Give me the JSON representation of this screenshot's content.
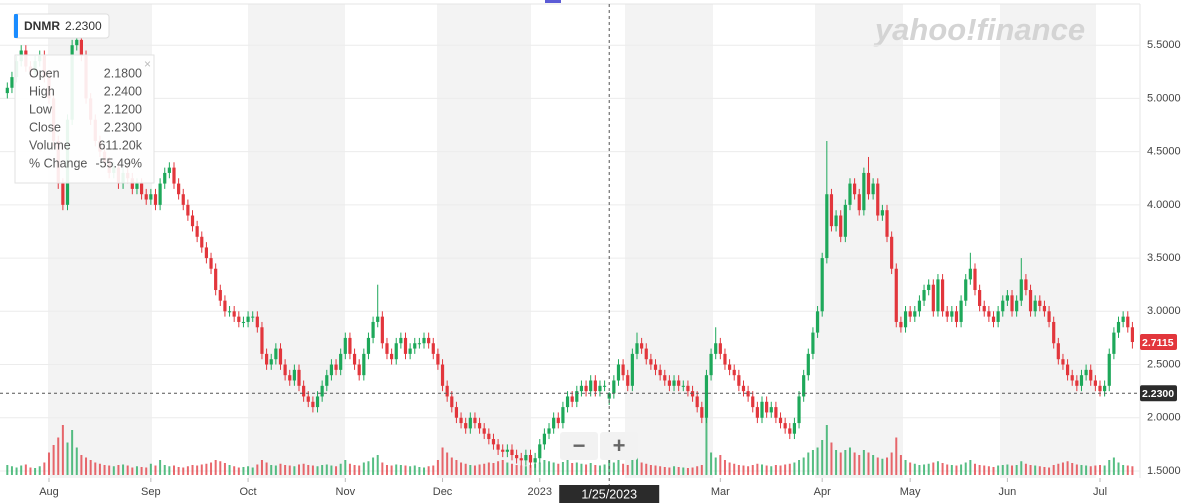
{
  "chart_data": {
    "type": "candlestick",
    "symbol": "DNMR",
    "price_label": "2.2300",
    "watermark": "yahoo!finance",
    "crosshair_date": "1/25/2023",
    "zoom_out": "−",
    "zoom_in": "+",
    "tooltip": [
      {
        "label": "Open",
        "value": "2.1800"
      },
      {
        "label": "High",
        "value": "2.2400"
      },
      {
        "label": "Low",
        "value": "2.1200"
      },
      {
        "label": "Close",
        "value": "2.2300"
      },
      {
        "label": "Volume",
        "value": "611.20k"
      },
      {
        "label": "% Change",
        "value": "-55.49%"
      }
    ],
    "up_color": "#1ea85a",
    "down_color": "#e2363c",
    "grid": true,
    "ylim": [
      1.434,
      5.887
    ],
    "yticks": [
      {
        "value": 1.5,
        "label": "1.5000"
      },
      {
        "value": 2,
        "label": "2.0000"
      },
      {
        "value": 2.5,
        "label": "2.5000"
      },
      {
        "value": 3,
        "label": "3.0000"
      },
      {
        "value": 3.5,
        "label": "3.5000"
      },
      {
        "value": 4,
        "label": "4.0000"
      },
      {
        "value": 4.5,
        "label": "4.5000"
      },
      {
        "value": 5,
        "label": "5.0000"
      },
      {
        "value": 5.5,
        "label": "5.5000"
      }
    ],
    "xticks": [
      {
        "value": 9,
        "label": "Aug"
      },
      {
        "value": 31,
        "label": "Sep"
      },
      {
        "value": 52,
        "label": "Oct"
      },
      {
        "value": 73,
        "label": "Nov"
      },
      {
        "value": 94,
        "label": "Dec"
      },
      {
        "value": 115,
        "label": "2023"
      },
      {
        "value": 154,
        "label": "Mar"
      },
      {
        "value": 176,
        "label": "Apr"
      },
      {
        "value": 195,
        "label": "May"
      },
      {
        "value": 216,
        "label": "Jun"
      },
      {
        "value": 236,
        "label": "Jul"
      }
    ],
    "open": [
      5.05,
      5.1,
      5.2,
      5.35,
      5.45,
      5.3,
      5.25,
      5.35,
      5.4,
      5.2,
      5.0,
      4.6,
      4.2,
      4.0,
      4.8,
      5.5,
      5.55,
      5.4,
      5.0,
      4.8,
      4.6,
      4.5,
      4.4,
      4.3,
      4.35,
      4.2,
      4.3,
      4.25,
      4.15,
      4.2,
      4.1,
      4.05,
      4.1,
      4.0,
      4.2,
      4.3,
      4.35,
      4.2,
      4.1,
      4.0,
      3.9,
      3.8,
      3.7,
      3.6,
      3.5,
      3.4,
      3.2,
      3.1,
      3.0,
      3.0,
      2.95,
      2.9,
      2.9,
      2.95,
      2.95,
      2.85,
      2.6,
      2.5,
      2.55,
      2.65,
      2.5,
      2.4,
      2.35,
      2.45,
      2.3,
      2.2,
      2.15,
      2.1,
      2.2,
      2.3,
      2.4,
      2.5,
      2.45,
      2.6,
      2.75,
      2.6,
      2.5,
      2.4,
      2.6,
      2.75,
      2.9,
      2.95,
      2.7,
      2.6,
      2.55,
      2.7,
      2.75,
      2.6,
      2.65,
      2.7,
      2.7,
      2.75,
      2.7,
      2.6,
      2.5,
      2.3,
      2.2,
      2.1,
      2.0,
      1.95,
      1.9,
      2.0,
      1.95,
      1.9,
      1.85,
      1.8,
      1.75,
      1.7,
      1.68,
      1.7,
      1.65,
      1.62,
      1.6,
      1.65,
      1.58,
      1.62,
      1.75,
      1.85,
      1.9,
      2.0,
      1.95,
      2.1,
      2.2,
      2.15,
      2.25,
      2.3,
      2.25,
      2.35,
      2.25,
      2.3,
      2.18,
      2.23,
      2.35,
      2.5,
      2.4,
      2.3,
      2.6,
      2.7,
      2.65,
      2.55,
      2.5,
      2.45,
      2.4,
      2.35,
      2.3,
      2.35,
      2.3,
      2.3,
      2.25,
      2.2,
      2.1,
      2.0,
      2.4,
      2.6,
      2.7,
      2.6,
      2.5,
      2.45,
      2.4,
      2.3,
      2.25,
      2.2,
      2.1,
      2.0,
      2.15,
      2.05,
      2.1,
      2.0,
      1.95,
      1.9,
      1.85,
      1.95,
      2.2,
      2.4,
      2.6,
      2.8,
      3.0,
      3.5,
      4.1,
      3.8,
      3.9,
      3.7,
      4.0,
      4.2,
      4.1,
      3.95,
      4.3,
      4.1,
      4.2,
      3.9,
      3.95,
      3.7,
      3.4,
      2.9,
      2.85,
      3.0,
      2.95,
      3.0,
      3.1,
      3.2,
      3.25,
      3.0,
      3.3,
      3.0,
      2.95,
      3.0,
      2.9,
      3.1,
      3.3,
      3.4,
      3.2,
      3.05,
      3.0,
      2.95,
      2.9,
      3.0,
      3.1,
      3.15,
      3.0,
      3.1,
      3.3,
      3.2,
      3.0,
      3.1,
      3.05,
      3.0,
      2.9,
      2.7,
      2.55,
      2.5,
      2.4,
      2.35,
      2.3,
      2.4,
      2.45,
      2.35,
      2.3,
      2.25,
      2.3,
      2.6,
      2.8,
      2.9,
      2.95,
      2.85
    ],
    "high": [
      5.15,
      5.25,
      5.4,
      5.5,
      5.5,
      5.35,
      5.4,
      5.45,
      5.45,
      5.25,
      5.05,
      4.65,
      4.25,
      4.85,
      5.55,
      5.6,
      5.6,
      5.45,
      5.05,
      4.85,
      4.65,
      4.55,
      4.45,
      4.4,
      4.4,
      4.35,
      4.35,
      4.3,
      4.25,
      4.25,
      4.15,
      4.15,
      4.15,
      4.25,
      4.35,
      4.4,
      4.4,
      4.25,
      4.15,
      4.05,
      3.95,
      3.85,
      3.75,
      3.65,
      3.55,
      3.45,
      3.25,
      3.15,
      3.05,
      3.05,
      3.0,
      2.95,
      3.0,
      3.0,
      3.0,
      2.9,
      2.65,
      2.6,
      2.7,
      2.7,
      2.55,
      2.45,
      2.5,
      2.5,
      2.35,
      2.25,
      2.2,
      2.25,
      2.35,
      2.45,
      2.55,
      2.55,
      2.65,
      2.8,
      2.8,
      2.65,
      2.55,
      2.65,
      2.8,
      2.95,
      3.25,
      3.0,
      2.75,
      2.65,
      2.75,
      2.8,
      2.8,
      2.7,
      2.75,
      2.75,
      2.8,
      2.8,
      2.75,
      2.65,
      2.55,
      2.35,
      2.25,
      2.15,
      2.05,
      2.0,
      2.05,
      2.05,
      2.0,
      1.95,
      1.9,
      1.85,
      1.8,
      1.75,
      1.75,
      1.75,
      1.7,
      1.67,
      1.7,
      1.7,
      1.67,
      1.8,
      1.9,
      1.95,
      2.05,
      2.05,
      2.15,
      2.25,
      2.25,
      2.3,
      2.35,
      2.35,
      2.4,
      2.4,
      2.35,
      2.35,
      2.24,
      2.4,
      2.55,
      2.55,
      2.45,
      2.65,
      2.8,
      2.75,
      2.7,
      2.6,
      2.55,
      2.5,
      2.45,
      2.4,
      2.4,
      2.4,
      2.35,
      2.35,
      2.3,
      2.25,
      2.15,
      2.45,
      2.65,
      2.85,
      2.75,
      2.65,
      2.55,
      2.5,
      2.45,
      2.35,
      2.3,
      2.25,
      2.15,
      2.2,
      2.2,
      2.15,
      2.15,
      2.05,
      2.0,
      1.95,
      2.0,
      2.25,
      2.45,
      2.65,
      2.85,
      3.05,
      3.55,
      4.6,
      4.15,
      3.95,
      3.95,
      4.05,
      4.25,
      4.25,
      4.15,
      4.35,
      4.45,
      4.25,
      4.25,
      4.0,
      4.0,
      3.75,
      3.45,
      2.95,
      3.05,
      3.05,
      3.05,
      3.15,
      3.25,
      3.3,
      3.3,
      3.35,
      3.35,
      3.05,
      3.05,
      3.05,
      3.15,
      3.35,
      3.55,
      3.45,
      3.25,
      3.1,
      3.05,
      3.0,
      3.05,
      3.15,
      3.2,
      3.2,
      3.15,
      3.5,
      3.35,
      3.25,
      3.15,
      3.15,
      3.1,
      3.05,
      2.95,
      2.75,
      2.6,
      2.55,
      2.45,
      2.4,
      2.45,
      2.5,
      2.5,
      2.4,
      2.35,
      2.35,
      2.65,
      2.85,
      2.95,
      3.0,
      3.0,
      2.9
    ],
    "low": [
      5.0,
      5.05,
      5.15,
      5.3,
      5.25,
      5.2,
      5.2,
      5.3,
      5.15,
      4.95,
      4.55,
      4.15,
      3.95,
      3.95,
      4.75,
      5.45,
      5.35,
      4.95,
      4.75,
      4.55,
      4.45,
      4.35,
      4.25,
      4.25,
      4.15,
      4.15,
      4.2,
      4.1,
      4.1,
      4.05,
      4.0,
      4.0,
      3.95,
      3.95,
      4.15,
      4.25,
      4.15,
      4.05,
      3.95,
      3.85,
      3.75,
      3.65,
      3.55,
      3.45,
      3.35,
      3.15,
      3.05,
      2.95,
      2.95,
      2.9,
      2.85,
      2.85,
      2.85,
      2.9,
      2.8,
      2.55,
      2.45,
      2.45,
      2.5,
      2.45,
      2.35,
      2.3,
      2.3,
      2.25,
      2.15,
      2.1,
      2.05,
      2.05,
      2.15,
      2.25,
      2.35,
      2.4,
      2.4,
      2.55,
      2.55,
      2.45,
      2.35,
      2.35,
      2.55,
      2.7,
      2.85,
      2.65,
      2.55,
      2.5,
      2.5,
      2.65,
      2.55,
      2.55,
      2.6,
      2.65,
      2.65,
      2.65,
      2.55,
      2.45,
      2.25,
      2.15,
      2.05,
      1.95,
      1.9,
      1.85,
      1.85,
      1.9,
      1.85,
      1.8,
      1.75,
      1.7,
      1.65,
      1.63,
      1.63,
      1.6,
      1.57,
      1.55,
      1.55,
      1.53,
      1.53,
      1.57,
      1.7,
      1.8,
      1.85,
      1.9,
      1.9,
      2.05,
      2.1,
      2.1,
      2.2,
      2.2,
      2.2,
      2.2,
      2.2,
      2.25,
      2.12,
      2.18,
      2.3,
      2.35,
      2.25,
      2.25,
      2.55,
      2.6,
      2.5,
      2.45,
      2.4,
      2.35,
      2.3,
      2.25,
      2.25,
      2.25,
      2.25,
      2.2,
      2.15,
      2.05,
      1.95,
      1.95,
      2.35,
      2.55,
      2.55,
      2.45,
      2.4,
      2.35,
      2.25,
      2.2,
      2.15,
      2.05,
      1.95,
      1.95,
      2.0,
      2.0,
      1.95,
      1.9,
      1.85,
      1.8,
      1.8,
      1.9,
      2.15,
      2.35,
      2.55,
      2.75,
      2.95,
      3.45,
      3.75,
      3.75,
      3.65,
      3.65,
      3.95,
      4.05,
      3.9,
      3.9,
      4.05,
      4.05,
      3.85,
      3.85,
      3.65,
      3.35,
      2.85,
      2.8,
      2.8,
      2.9,
      2.9,
      2.95,
      3.05,
      3.15,
      2.95,
      2.95,
      2.95,
      2.9,
      2.9,
      2.85,
      2.85,
      3.05,
      3.25,
      3.15,
      3.0,
      2.95,
      2.9,
      2.85,
      2.85,
      2.95,
      3.05,
      2.95,
      2.95,
      3.05,
      3.15,
      2.95,
      2.95,
      3.0,
      2.95,
      2.85,
      2.65,
      2.5,
      2.45,
      2.35,
      2.3,
      2.25,
      2.25,
      2.35,
      2.3,
      2.25,
      2.2,
      2.2,
      2.25,
      2.55,
      2.75,
      2.85,
      2.8,
      2.65
    ],
    "close": [
      5.1,
      5.2,
      5.35,
      5.45,
      5.3,
      5.25,
      5.35,
      5.4,
      5.2,
      5.0,
      4.6,
      4.2,
      4.0,
      4.8,
      5.5,
      5.55,
      5.4,
      5.0,
      4.8,
      4.6,
      4.5,
      4.4,
      4.3,
      4.35,
      4.2,
      4.3,
      4.25,
      4.15,
      4.2,
      4.1,
      4.05,
      4.1,
      4.0,
      4.2,
      4.3,
      4.35,
      4.2,
      4.1,
      4.0,
      3.9,
      3.8,
      3.7,
      3.6,
      3.5,
      3.4,
      3.2,
      3.1,
      3.0,
      3.0,
      2.95,
      2.9,
      2.9,
      2.95,
      2.95,
      2.85,
      2.6,
      2.5,
      2.55,
      2.65,
      2.5,
      2.4,
      2.35,
      2.45,
      2.3,
      2.2,
      2.15,
      2.1,
      2.2,
      2.3,
      2.4,
      2.5,
      2.45,
      2.6,
      2.75,
      2.6,
      2.5,
      2.4,
      2.6,
      2.75,
      2.9,
      2.95,
      2.7,
      2.6,
      2.55,
      2.7,
      2.75,
      2.6,
      2.65,
      2.7,
      2.7,
      2.75,
      2.7,
      2.6,
      2.5,
      2.3,
      2.2,
      2.1,
      2.0,
      1.95,
      1.9,
      2.0,
      1.95,
      1.9,
      1.85,
      1.8,
      1.75,
      1.7,
      1.68,
      1.7,
      1.65,
      1.62,
      1.6,
      1.65,
      1.58,
      1.62,
      1.75,
      1.85,
      1.9,
      2.0,
      1.95,
      2.1,
      2.2,
      2.15,
      2.25,
      2.3,
      2.25,
      2.35,
      2.25,
      2.3,
      2.3,
      2.23,
      2.35,
      2.5,
      2.4,
      2.3,
      2.6,
      2.7,
      2.65,
      2.55,
      2.5,
      2.45,
      2.4,
      2.35,
      2.3,
      2.35,
      2.3,
      2.3,
      2.25,
      2.2,
      2.1,
      2.0,
      2.4,
      2.6,
      2.7,
      2.6,
      2.5,
      2.45,
      2.4,
      2.3,
      2.25,
      2.2,
      2.1,
      2.0,
      2.15,
      2.05,
      2.1,
      2.0,
      1.95,
      1.9,
      1.85,
      1.95,
      2.2,
      2.4,
      2.6,
      2.8,
      3.0,
      3.5,
      4.1,
      3.8,
      3.9,
      3.7,
      4.0,
      4.2,
      4.1,
      3.95,
      4.3,
      4.1,
      4.2,
      3.9,
      3.95,
      3.7,
      3.4,
      2.9,
      2.85,
      3.0,
      2.95,
      3.0,
      3.1,
      3.2,
      3.25,
      3.0,
      3.3,
      3.0,
      2.95,
      3.0,
      2.9,
      3.1,
      3.3,
      3.4,
      3.2,
      3.05,
      3.0,
      2.95,
      2.9,
      3.0,
      3.1,
      3.15,
      3.0,
      3.1,
      3.3,
      3.2,
      3.0,
      3.1,
      3.05,
      3.0,
      2.9,
      2.7,
      2.55,
      2.5,
      2.4,
      2.35,
      2.3,
      2.4,
      2.45,
      2.35,
      2.3,
      2.25,
      2.3,
      2.6,
      2.8,
      2.9,
      2.95,
      2.85,
      2.7115
    ],
    "volume": [
      400,
      350,
      300,
      380,
      420,
      300,
      280,
      350,
      500,
      900,
      1200,
      1500,
      2000,
      1300,
      1800,
      1100,
      800,
      700,
      600,
      500,
      450,
      400,
      380,
      350,
      400,
      420,
      380,
      300,
      350,
      320,
      300,
      450,
      380,
      600,
      400,
      350,
      380,
      320,
      300,
      350,
      400,
      380,
      420,
      450,
      500,
      600,
      550,
      480,
      400,
      350,
      300,
      320,
      350,
      300,
      420,
      600,
      500,
      400,
      380,
      450,
      400,
      380,
      350,
      420,
      450,
      400,
      380,
      350,
      400,
      420,
      380,
      350,
      450,
      600,
      450,
      400,
      380,
      500,
      550,
      700,
      800,
      500,
      400,
      380,
      420,
      400,
      380,
      350,
      380,
      320,
      300,
      350,
      380,
      600,
      1100,
      900,
      700,
      600,
      500,
      450,
      400,
      380,
      420,
      450,
      500,
      480,
      550,
      600,
      500,
      450,
      400,
      380,
      350,
      400,
      450,
      500,
      600,
      550,
      500,
      450,
      520,
      600,
      480,
      500,
      450,
      420,
      480,
      400,
      380,
      420,
      611.2,
      500,
      650,
      450,
      400,
      800,
      700,
      500,
      450,
      400,
      380,
      350,
      320,
      300,
      350,
      320,
      300,
      280,
      300,
      350,
      400,
      2400,
      900,
      700,
      800,
      600,
      500,
      450,
      400,
      380,
      350,
      400,
      450,
      420,
      380,
      350,
      400,
      380,
      420,
      450,
      500,
      600,
      700,
      900,
      1000,
      1100,
      1400,
      2000,
      1300,
      1000,
      900,
      1000,
      1100,
      900,
      800,
      1000,
      900,
      800,
      700,
      650,
      700,
      900,
      1500,
      800,
      600,
      500,
      450,
      400,
      420,
      450,
      500,
      550,
      480,
      420,
      400,
      380,
      420,
      500,
      600,
      450,
      400,
      380,
      350,
      320,
      380,
      400,
      420,
      380,
      400,
      550,
      450,
      400,
      380,
      350,
      320,
      300,
      400,
      450,
      500,
      550,
      480,
      420,
      400,
      380,
      350,
      380,
      400,
      380,
      600,
      700,
      500,
      400,
      380,
      350
    ]
  }
}
